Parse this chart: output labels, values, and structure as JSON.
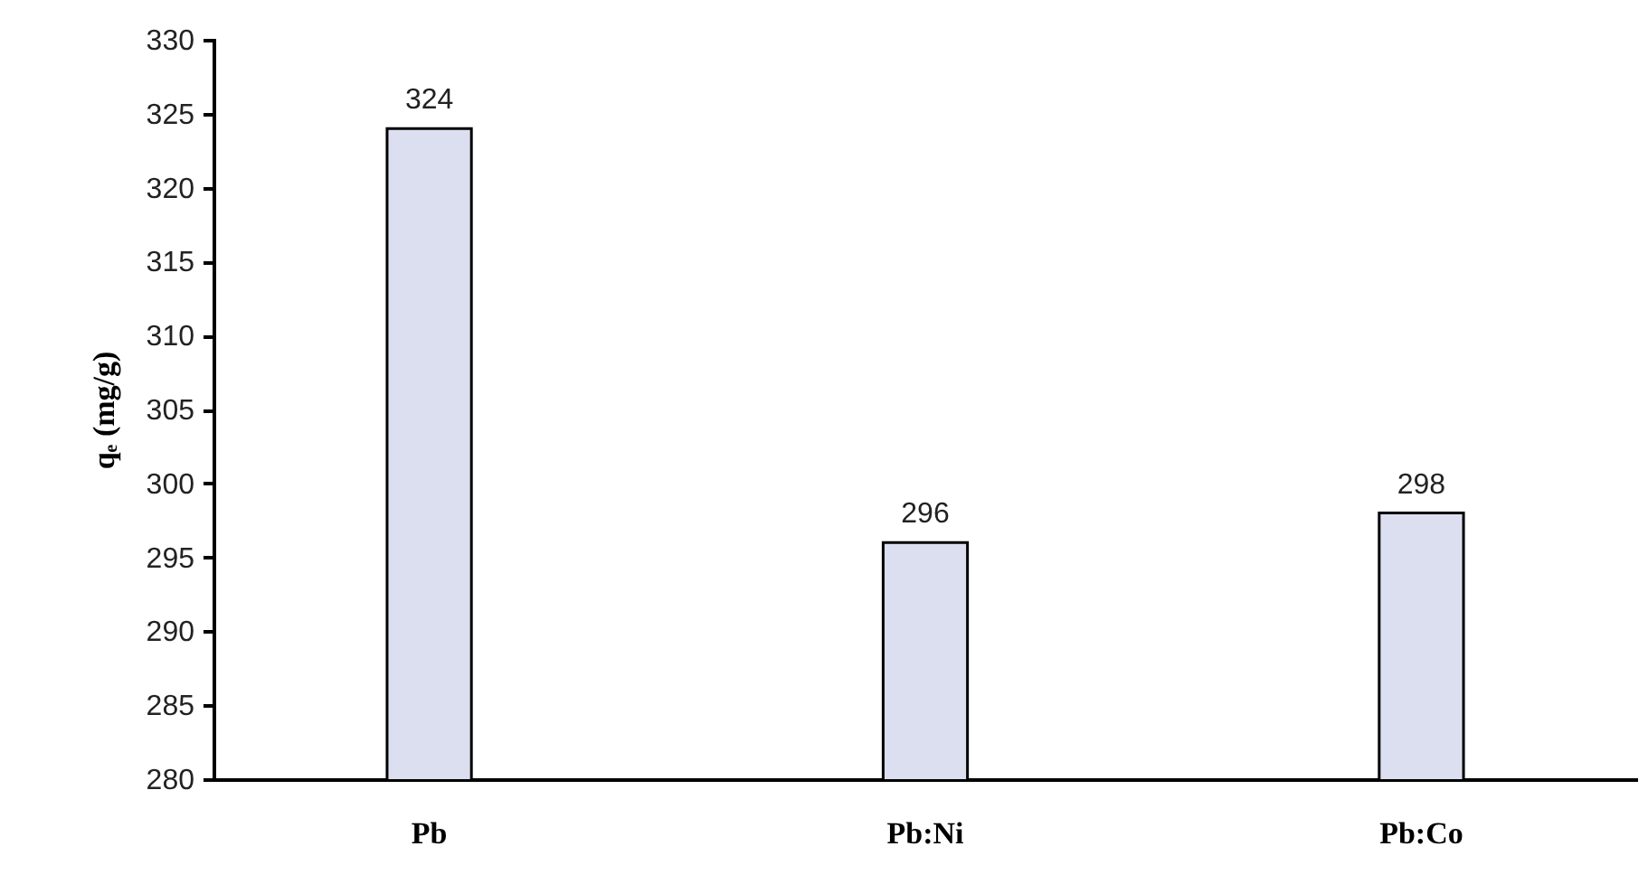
{
  "chart_data": {
    "type": "bar",
    "ylabel": "qₑ (mg/g)",
    "categories": [
      "Pb",
      "Pb:Ni",
      "Pb:Co"
    ],
    "values": [
      324,
      296,
      298
    ],
    "color": "#dcdff0",
    "ylim": [
      280,
      330
    ],
    "yticks": [
      280,
      285,
      290,
      295,
      300,
      305,
      310,
      315,
      320,
      325,
      330
    ],
    "data_labels": true,
    "grid": false
  }
}
